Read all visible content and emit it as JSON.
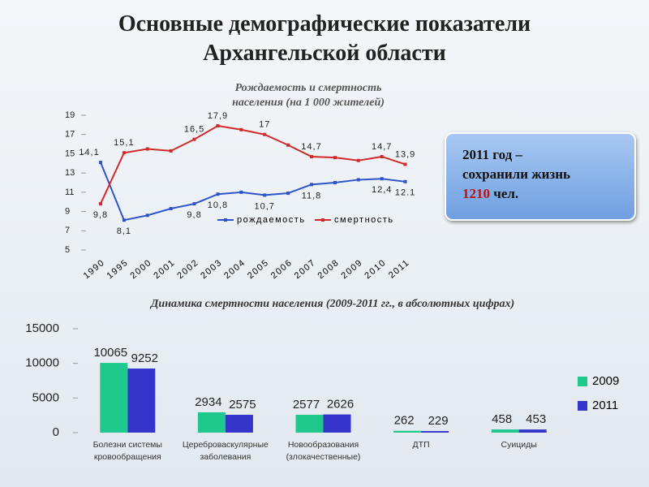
{
  "title": "Основные демографические показатели\nАрхангельской области",
  "callout": {
    "text": "2011 год –\nсохранили жизнь",
    "number": 1210,
    "unit": "чел."
  },
  "chart_data": [
    {
      "type": "line",
      "title": "Рождаемость и смертность\nнаселения (на 1 000 жителей)",
      "categories": [
        "1990",
        "1995",
        "2000",
        "2001",
        "2002",
        "2003",
        "2004",
        "2005",
        "2006",
        "2007",
        "2008",
        "2009",
        "2010",
        "2011"
      ],
      "series": [
        {
          "name": "рождаемость",
          "color": "#2e55c8",
          "values": [
            14.1,
            8.1,
            8.6,
            9.3,
            9.8,
            10.8,
            11.0,
            10.7,
            10.9,
            11.8,
            12.0,
            12.3,
            12.4,
            12.1
          ],
          "value_labels": [
            "14,1",
            "8,1",
            null,
            null,
            "9,8",
            "10,8",
            null,
            "10,7",
            null,
            "11,8",
            null,
            null,
            "12,4",
            "12.1"
          ]
        },
        {
          "name": "смертность",
          "color": "#d22a2a",
          "values": [
            9.8,
            15.1,
            15.5,
            15.3,
            16.5,
            17.9,
            17.5,
            17.0,
            15.9,
            14.7,
            14.6,
            14.3,
            14.7,
            13.9
          ],
          "value_labels": [
            "9,8",
            "15,1",
            null,
            null,
            "16,5",
            "17,9",
            null,
            "17",
            null,
            "14,7",
            null,
            null,
            "14,7",
            "13,9"
          ]
        }
      ],
      "ylim": [
        5,
        19
      ],
      "yticks": [
        5,
        7,
        9,
        11,
        13,
        15,
        17,
        19
      ],
      "legend": "bottom"
    },
    {
      "type": "bar",
      "title": "Динамика смертности населения (2009-2011 гг., в абсолютных цифрах)",
      "categories": [
        "Болезни системы\nкровообращения",
        "Цереброваскулярные\nзаболевания",
        "Новообразования\n(злокачественные)",
        "ДТП",
        "Суициды"
      ],
      "series": [
        {
          "name": "2009",
          "color": "#1fc98e",
          "values": [
            10065,
            2934,
            2577,
            262,
            458
          ]
        },
        {
          "name": "2011",
          "color": "#3535cc",
          "values": [
            9252,
            2575,
            2626,
            229,
            453
          ]
        }
      ],
      "ylim": [
        0,
        15000
      ],
      "yticks": [
        0,
        5000,
        10000,
        15000
      ],
      "legend": "right"
    }
  ]
}
